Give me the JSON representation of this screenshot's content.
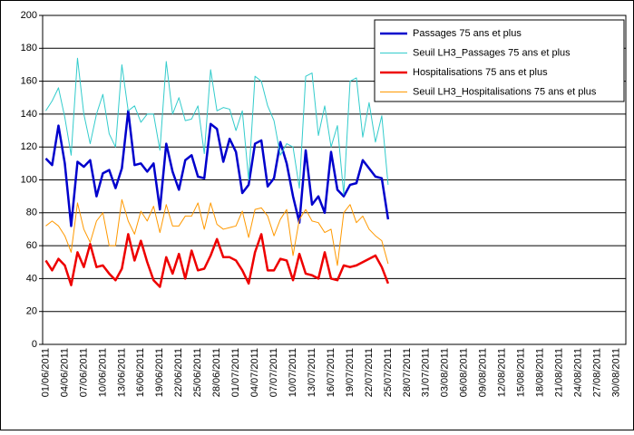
{
  "chart_data": {
    "type": "line",
    "categories": [
      "01/06/2011",
      null,
      null,
      "04/06/2011",
      null,
      null,
      "07/06/2011",
      null,
      null,
      "10/06/2011",
      null,
      null,
      "13/06/2011",
      null,
      null,
      "16/06/2011",
      null,
      null,
      "19/06/2011",
      null,
      null,
      "22/06/2011",
      null,
      null,
      "25/06/2011",
      null,
      null,
      "28/06/2011",
      null,
      null,
      "01/07/2011",
      null,
      null,
      "04/07/2011",
      null,
      null,
      "07/07/2011",
      null,
      null,
      "10/07/2011",
      null,
      null,
      "13/07/2011",
      null,
      null,
      "16/07/2011",
      null,
      null,
      "19/07/2011",
      null,
      null,
      "22/07/2011",
      null,
      null,
      "25/07/2011",
      null,
      null,
      "28/07/2011",
      null,
      null,
      "31/07/2011",
      null,
      null,
      "03/08/2011",
      null,
      null,
      "06/08/2011",
      null,
      null,
      "09/08/2011",
      null,
      null,
      "12/08/2011",
      null,
      null,
      "15/08/2011",
      null,
      null,
      "18/08/2011",
      null,
      null,
      "21/08/2011",
      null,
      null,
      "24/08/2011",
      null,
      null,
      "27/08/2011",
      null,
      null,
      "30/08/2011",
      null
    ],
    "series": [
      {
        "name": "Passages 75 ans et plus",
        "color": "#0000cc",
        "width": 2.5,
        "values": [
          113,
          109,
          133,
          110,
          72,
          111,
          108,
          112,
          90,
          104,
          106,
          95,
          107,
          142,
          109,
          110,
          105,
          110,
          82,
          122,
          105,
          94,
          112,
          115,
          102,
          101,
          134,
          131,
          111,
          125,
          117,
          92,
          97,
          122,
          124,
          96,
          101,
          123,
          110,
          90,
          74,
          118,
          85,
          90,
          80,
          117,
          94,
          90,
          97,
          98,
          112,
          107,
          102,
          101,
          76,
          null,
          null,
          null,
          null,
          null,
          null,
          null,
          null,
          null,
          null,
          null,
          null,
          null,
          null,
          null,
          null,
          null,
          null,
          null,
          null,
          null,
          null,
          null,
          null,
          null,
          null,
          null,
          null,
          null,
          null,
          null,
          null,
          null,
          null,
          null,
          null,
          null
        ]
      },
      {
        "name": "Seuil LH3_Passages 75 ans et plus",
        "color": "#33cccc",
        "width": 1,
        "values": [
          142,
          148,
          156,
          138,
          115,
          174,
          140,
          122,
          140,
          152,
          128,
          120,
          170,
          142,
          145,
          135,
          140,
          140,
          118,
          172,
          140,
          150,
          136,
          137,
          145,
          116,
          167,
          142,
          144,
          143,
          130,
          142,
          100,
          163,
          160,
          145,
          136,
          115,
          122,
          120,
          95,
          163,
          165,
          127,
          145,
          120,
          133,
          91,
          160,
          162,
          126,
          147,
          123,
          139,
          97,
          null,
          null,
          null,
          null,
          null,
          null,
          null,
          null,
          null,
          null,
          null,
          null,
          null,
          null,
          null,
          null,
          null,
          null,
          null,
          null,
          null,
          null,
          null,
          null,
          null,
          null,
          null,
          null,
          null,
          null,
          null,
          null,
          null,
          null,
          null,
          null,
          null
        ]
      },
      {
        "name": "Hospitalisations 75 ans et plus",
        "color": "#ee0000",
        "width": 2.5,
        "values": [
          51,
          45,
          52,
          48,
          36,
          56,
          47,
          61,
          47,
          48,
          43,
          39,
          46,
          67,
          51,
          63,
          50,
          39,
          35,
          53,
          43,
          55,
          40,
          57,
          45,
          46,
          54,
          64,
          53,
          53,
          51,
          45,
          37,
          56,
          67,
          45,
          45,
          52,
          51,
          39,
          55,
          43,
          42,
          40,
          56,
          40,
          39,
          48,
          47,
          48,
          50,
          52,
          54,
          47,
          37,
          null,
          null,
          null,
          null,
          null,
          null,
          null,
          null,
          null,
          null,
          null,
          null,
          null,
          null,
          null,
          null,
          null,
          null,
          null,
          null,
          null,
          null,
          null,
          null,
          null,
          null,
          null,
          null,
          null,
          null,
          null,
          null,
          null,
          null,
          null,
          null,
          null
        ]
      },
      {
        "name": "Seuil LH3_Hospitalisations 75 ans et plus",
        "color": "#ff9900",
        "width": 1,
        "values": [
          72,
          75,
          72,
          66,
          56,
          86,
          70,
          62,
          75,
          80,
          60,
          60,
          88,
          75,
          67,
          81,
          75,
          84,
          68,
          85,
          72,
          72,
          78,
          78,
          86,
          70,
          86,
          73,
          70,
          71,
          72,
          81,
          65,
          82,
          83,
          78,
          66,
          76,
          82,
          54,
          76,
          82,
          75,
          74,
          68,
          70,
          48,
          80,
          85,
          74,
          78,
          70,
          66,
          63,
          49,
          null,
          null,
          null,
          null,
          null,
          null,
          null,
          null,
          null,
          null,
          null,
          null,
          null,
          null,
          null,
          null,
          null,
          null,
          null,
          null,
          null,
          null,
          null,
          null,
          null,
          null,
          null,
          null,
          null,
          null,
          null,
          null,
          null,
          null,
          null,
          null,
          null
        ]
      }
    ],
    "ylim": [
      0,
      200
    ],
    "yticks": [
      0,
      20,
      40,
      60,
      80,
      100,
      120,
      140,
      160,
      180,
      200
    ],
    "grid": true,
    "legend": "top-right"
  }
}
